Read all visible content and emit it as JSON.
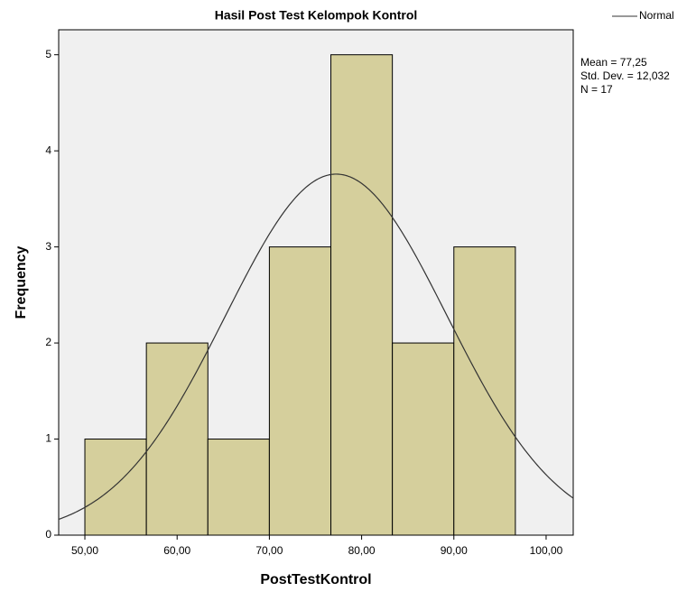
{
  "chart_data": {
    "type": "histogram",
    "title": "Hasil Post Test Kelompok Kontrol",
    "xlabel": "PostTestKontrol",
    "ylabel": "Frequency",
    "bins": [
      50,
      56.667,
      63.333,
      70,
      76.667,
      83.333,
      90,
      96.667
    ],
    "values": [
      1,
      2,
      1,
      3,
      5,
      2,
      3
    ],
    "color": "#d5cf9c",
    "xlim": [
      47.16,
      102.94
    ],
    "ylim": [
      0,
      5.26
    ],
    "xticks": [
      {
        "value": 50,
        "label": "50,00"
      },
      {
        "value": 60,
        "label": "60,00"
      },
      {
        "value": 70,
        "label": "70,00"
      },
      {
        "value": 80,
        "label": "80,00"
      },
      {
        "value": 90,
        "label": "90,00"
      },
      {
        "value": 100,
        "label": "100,00"
      }
    ],
    "yticks": [
      0,
      1,
      2,
      3,
      4,
      5
    ],
    "normal": {
      "name": "Normal",
      "color": "#333333",
      "mean": {
        "value": 77.25,
        "label": "Mean = 77,25"
      },
      "sd": {
        "value": 12.032,
        "label": "Std. Dev. = 12,032"
      },
      "n": {
        "value": 17,
        "label": "N = 17"
      }
    }
  }
}
